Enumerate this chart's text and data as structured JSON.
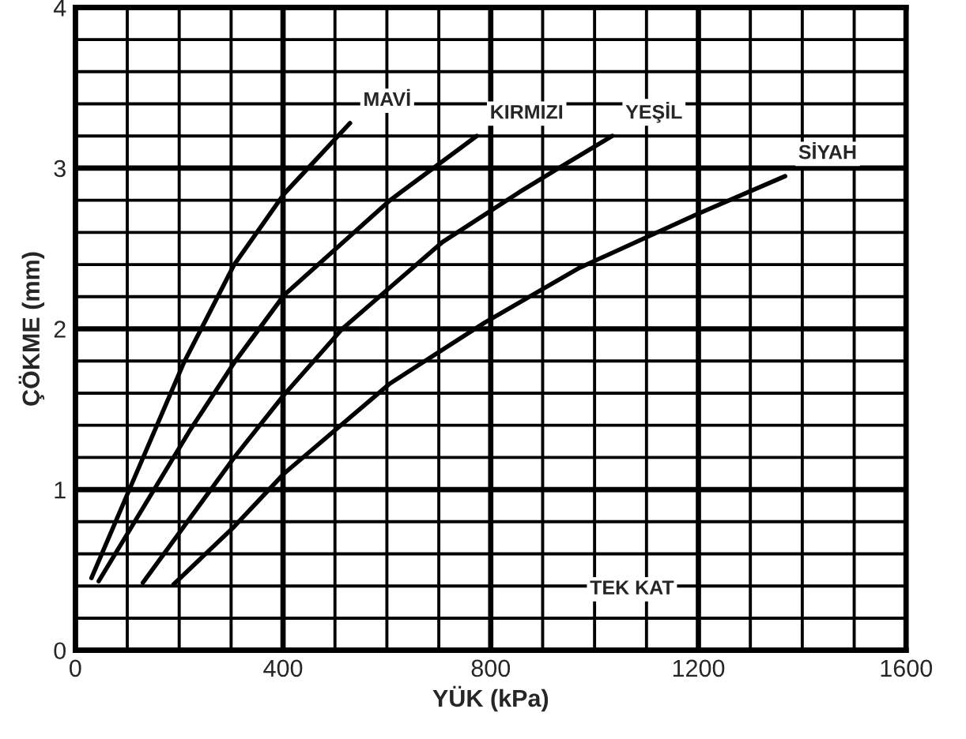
{
  "chart_data": {
    "type": "line",
    "xlabel": "YÜK (kPa)",
    "ylabel": "ÇÖKME (mm)",
    "xlim": [
      0,
      1600
    ],
    "ylim": [
      0,
      4
    ],
    "xticks": [
      0,
      400,
      800,
      1200,
      1600
    ],
    "yticks": [
      0,
      1,
      2,
      3,
      4
    ],
    "grid": true,
    "legend": false,
    "marker": "none",
    "line_style": "solid",
    "series": [
      {
        "name": "MAVİ",
        "color": "#000000",
        "x": [
          31,
          108,
          209,
          306,
          402,
          529
        ],
        "values": [
          0.45,
          1.03,
          1.79,
          2.4,
          2.84,
          3.28
        ]
      },
      {
        "name": "KIRMIZI",
        "color": "#000000",
        "x": [
          45,
          219,
          306,
          402,
          606,
          773
        ],
        "values": [
          0.43,
          1.36,
          1.79,
          2.21,
          2.8,
          3.2
        ]
      },
      {
        "name": "YEŞİL",
        "color": "#000000",
        "x": [
          130,
          306,
          402,
          514,
          707,
          855,
          931,
          1034
        ],
        "values": [
          0.42,
          1.2,
          1.59,
          2.0,
          2.54,
          2.85,
          3.0,
          3.2
        ]
      },
      {
        "name": "SİYAH",
        "color": "#000000",
        "x": [
          189,
          306,
          402,
          606,
          789,
          971,
          1195,
          1367
        ],
        "values": [
          0.41,
          0.77,
          1.1,
          1.66,
          2.04,
          2.38,
          2.71,
          2.95
        ]
      }
    ],
    "annotations": [
      "TEK KAT"
    ]
  }
}
